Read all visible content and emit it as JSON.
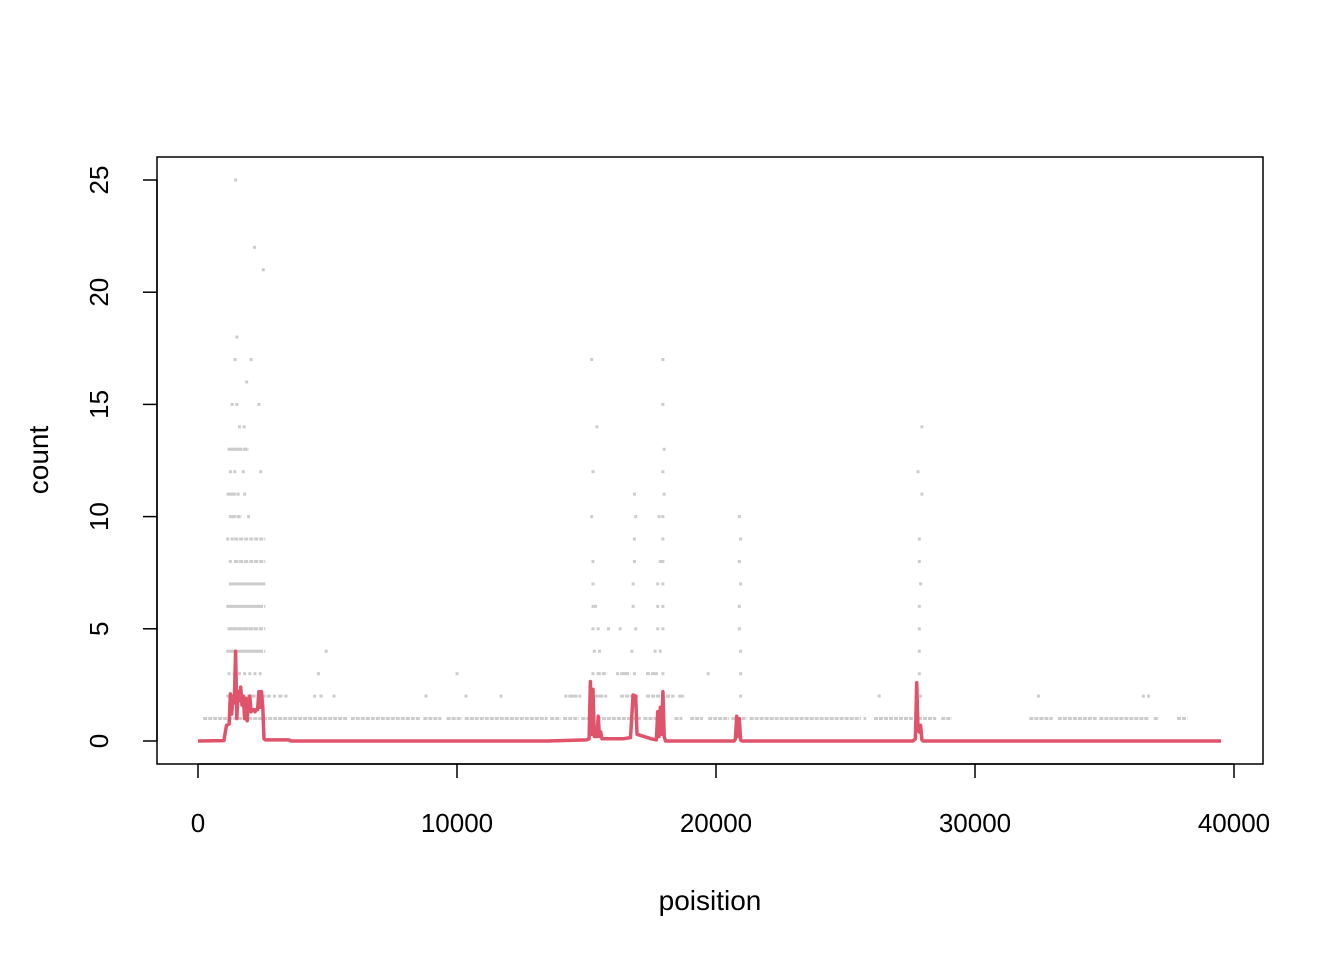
{
  "chart_data": {
    "type": "scatter",
    "title": "",
    "xlabel": "poisition",
    "ylabel": "count",
    "xlim": [
      -1500,
      41000
    ],
    "ylim": [
      -1,
      26
    ],
    "x_ticks": [
      0,
      10000,
      20000,
      30000,
      40000
    ],
    "y_ticks": [
      0,
      5,
      10,
      15,
      20,
      25
    ],
    "x_tick_labels": [
      "0",
      "10000",
      "20000",
      "30000",
      "40000"
    ],
    "y_tick_labels": [
      "0",
      "5",
      "10",
      "15",
      "20",
      "25"
    ],
    "grid": false,
    "legend": "none",
    "colors": {
      "points": "#cccccc",
      "line": "#df536b",
      "axis": "#000000"
    },
    "series": [
      {
        "type": "scatter",
        "points": [
          [
            1450,
            25
          ],
          [
            2180,
            22
          ],
          [
            2520,
            21
          ],
          [
            1500,
            18
          ],
          [
            1430,
            17
          ],
          [
            2050,
            17
          ],
          [
            1880,
            16
          ],
          [
            1320,
            15
          ],
          [
            1500,
            15
          ],
          [
            2350,
            15
          ],
          [
            1600,
            14
          ],
          [
            1780,
            14
          ],
          [
            1200,
            13
          ],
          [
            1350,
            13
          ],
          [
            1500,
            13
          ],
          [
            1650,
            13
          ],
          [
            1850,
            13
          ],
          [
            1250,
            12
          ],
          [
            1420,
            12
          ],
          [
            1750,
            12
          ],
          [
            2420,
            12
          ],
          [
            1250,
            11
          ],
          [
            1400,
            11
          ],
          [
            1550,
            11
          ],
          [
            1800,
            11
          ],
          [
            1250,
            10
          ],
          [
            1400,
            10
          ],
          [
            1550,
            10
          ],
          [
            1950,
            10
          ],
          [
            1150,
            9
          ],
          [
            1320,
            9
          ],
          [
            1480,
            9
          ],
          [
            1650,
            9
          ],
          [
            1850,
            9
          ],
          [
            2050,
            9
          ],
          [
            2250,
            9
          ],
          [
            2450,
            9
          ],
          [
            1250,
            8
          ],
          [
            1450,
            8
          ],
          [
            1650,
            8
          ],
          [
            1850,
            8
          ],
          [
            2050,
            8
          ],
          [
            2250,
            8
          ],
          [
            2450,
            8
          ],
          [
            1250,
            7
          ],
          [
            1450,
            7
          ],
          [
            1650,
            7
          ],
          [
            1850,
            7
          ],
          [
            2050,
            7
          ],
          [
            2250,
            7
          ],
          [
            2450,
            7
          ],
          [
            1150,
            6
          ],
          [
            1350,
            6
          ],
          [
            1550,
            6
          ],
          [
            1750,
            6
          ],
          [
            1950,
            6
          ],
          [
            2150,
            6
          ],
          [
            2350,
            6
          ],
          [
            1200,
            5
          ],
          [
            1400,
            5
          ],
          [
            1600,
            5
          ],
          [
            1800,
            5
          ],
          [
            2000,
            5
          ],
          [
            2200,
            5
          ],
          [
            2400,
            5
          ],
          [
            1150,
            4
          ],
          [
            1350,
            4
          ],
          [
            1550,
            4
          ],
          [
            1750,
            4
          ],
          [
            1950,
            4
          ],
          [
            2150,
            4
          ],
          [
            2350,
            4
          ],
          [
            4950,
            4
          ],
          [
            1200,
            3
          ],
          [
            1400,
            3
          ],
          [
            1600,
            3
          ],
          [
            1800,
            3
          ],
          [
            2000,
            3
          ],
          [
            2200,
            3
          ],
          [
            2400,
            3
          ],
          [
            4650,
            3
          ],
          [
            1150,
            2
          ],
          [
            1350,
            2
          ],
          [
            1550,
            2
          ],
          [
            1750,
            2
          ],
          [
            1950,
            2
          ],
          [
            2150,
            2
          ],
          [
            2350,
            2
          ],
          [
            2750,
            2
          ],
          [
            2950,
            2
          ],
          [
            3400,
            2
          ],
          [
            4500,
            2
          ],
          [
            4750,
            2
          ],
          [
            5250,
            2
          ],
          [
            8800,
            2
          ],
          [
            10350,
            2
          ],
          [
            11700,
            2
          ],
          [
            10000,
            3
          ],
          [
            15200,
            17
          ],
          [
            15400,
            14
          ],
          [
            15250,
            12
          ],
          [
            15200,
            10
          ],
          [
            15250,
            8
          ],
          [
            15250,
            7
          ],
          [
            15250,
            6
          ],
          [
            15350,
            6
          ],
          [
            15250,
            5
          ],
          [
            15450,
            5
          ],
          [
            15300,
            4
          ],
          [
            15500,
            4
          ],
          [
            15250,
            3
          ],
          [
            15450,
            3
          ],
          [
            14200,
            2
          ],
          [
            14450,
            2
          ],
          [
            15200,
            2
          ],
          [
            15450,
            2
          ],
          [
            15850,
            5
          ],
          [
            16850,
            11
          ],
          [
            16900,
            10
          ],
          [
            16850,
            9
          ],
          [
            16850,
            8
          ],
          [
            16800,
            7
          ],
          [
            16800,
            6
          ],
          [
            16900,
            5
          ],
          [
            16750,
            4
          ],
          [
            16850,
            3
          ],
          [
            16200,
            3
          ],
          [
            16500,
            3
          ],
          [
            16300,
            5
          ],
          [
            17950,
            17
          ],
          [
            17950,
            15
          ],
          [
            18000,
            13
          ],
          [
            17950,
            12
          ],
          [
            18000,
            11
          ],
          [
            17800,
            10
          ],
          [
            17950,
            10
          ],
          [
            17950,
            9
          ],
          [
            17850,
            8
          ],
          [
            17950,
            8
          ],
          [
            17750,
            7
          ],
          [
            17950,
            7
          ],
          [
            17750,
            6
          ],
          [
            17950,
            6
          ],
          [
            17750,
            5
          ],
          [
            17950,
            5
          ],
          [
            17650,
            4
          ],
          [
            17850,
            4
          ],
          [
            17700,
            3
          ],
          [
            17950,
            3
          ],
          [
            17950,
            2
          ],
          [
            18150,
            2
          ],
          [
            18600,
            2
          ],
          [
            19700,
            3
          ],
          [
            20900,
            10
          ],
          [
            20950,
            9
          ],
          [
            20900,
            8
          ],
          [
            20950,
            7
          ],
          [
            20900,
            6
          ],
          [
            20900,
            5
          ],
          [
            20950,
            4
          ],
          [
            20950,
            3
          ],
          [
            20950,
            2
          ],
          [
            27950,
            14
          ],
          [
            27800,
            12
          ],
          [
            27950,
            11
          ],
          [
            27850,
            9
          ],
          [
            27850,
            8
          ],
          [
            27900,
            7
          ],
          [
            27850,
            6
          ],
          [
            27850,
            5
          ],
          [
            27850,
            4
          ],
          [
            27850,
            3
          ],
          [
            27900,
            2
          ],
          [
            26300,
            2
          ],
          [
            32450,
            2
          ],
          [
            36500,
            2
          ],
          [
            36700,
            2
          ]
        ],
        "segments": [
          [
            200,
            5800,
            1
          ],
          [
            5900,
            8600,
            1
          ],
          [
            8700,
            9400,
            1
          ],
          [
            9600,
            10200,
            1
          ],
          [
            10300,
            13500,
            1
          ],
          [
            13600,
            14000,
            1
          ],
          [
            14100,
            14700,
            1
          ],
          [
            14800,
            15300,
            1
          ],
          [
            15400,
            17100,
            1
          ],
          [
            17200,
            18000,
            1
          ],
          [
            18400,
            18700,
            1
          ],
          [
            19000,
            19500,
            1
          ],
          [
            19700,
            20500,
            1
          ],
          [
            20600,
            21200,
            1
          ],
          [
            21300,
            25600,
            1
          ],
          [
            25700,
            25800,
            1
          ],
          [
            26100,
            27600,
            1
          ],
          [
            27800,
            28500,
            1
          ],
          [
            28700,
            29100,
            1
          ],
          [
            32100,
            33000,
            1
          ],
          [
            33200,
            34700,
            1
          ],
          [
            34800,
            36700,
            1
          ],
          [
            36900,
            37100,
            1
          ],
          [
            37800,
            38200,
            1
          ],
          [
            1300,
            2800,
            2
          ],
          [
            3100,
            3300,
            2
          ],
          [
            14300,
            14800,
            2
          ],
          [
            15300,
            15800,
            2
          ],
          [
            16300,
            17000,
            2
          ],
          [
            17300,
            18400,
            2
          ],
          [
            18600,
            18800,
            2
          ],
          [
            15400,
            15800,
            3
          ],
          [
            16300,
            16700,
            3
          ],
          [
            17300,
            17700,
            3
          ],
          [
            1200,
            2600,
            4
          ],
          [
            1200,
            2600,
            5
          ],
          [
            1200,
            2600,
            6
          ],
          [
            1300,
            2600,
            7
          ],
          [
            1400,
            2600,
            8
          ],
          [
            1400,
            2600,
            9
          ],
          [
            1300,
            1700,
            10
          ],
          [
            1100,
            1600,
            11
          ],
          [
            1150,
            1950,
            13
          ]
        ]
      },
      {
        "type": "line",
        "points": [
          [
            0,
            0
          ],
          [
            1000,
            0.02
          ],
          [
            1100,
            0.7
          ],
          [
            1200,
            0.75
          ],
          [
            1250,
            2.1
          ],
          [
            1300,
            1.2
          ],
          [
            1350,
            2.0
          ],
          [
            1400,
            1.7
          ],
          [
            1450,
            4.0
          ],
          [
            1500,
            1.0
          ],
          [
            1550,
            2.2
          ],
          [
            1600,
            1.8
          ],
          [
            1650,
            2.4
          ],
          [
            1700,
            1.6
          ],
          [
            1750,
            2.0
          ],
          [
            1800,
            1.0
          ],
          [
            1850,
            1.9
          ],
          [
            1900,
            0.9
          ],
          [
            1950,
            1.8
          ],
          [
            2000,
            2.0
          ],
          [
            2050,
            1.3
          ],
          [
            2100,
            1.4
          ],
          [
            2150,
            1.4
          ],
          [
            2200,
            1.3
          ],
          [
            2250,
            1.4
          ],
          [
            2300,
            1.4
          ],
          [
            2350,
            2.2
          ],
          [
            2400,
            1.5
          ],
          [
            2450,
            2.2
          ],
          [
            2500,
            1.5
          ],
          [
            2550,
            0.1
          ],
          [
            2600,
            0.05
          ],
          [
            3500,
            0.05
          ],
          [
            3600,
            0.0
          ],
          [
            13500,
            0.0
          ],
          [
            15000,
            0.05
          ],
          [
            15100,
            0.1
          ],
          [
            15150,
            2.65
          ],
          [
            15200,
            0.3
          ],
          [
            15250,
            2.3
          ],
          [
            15300,
            0.2
          ],
          [
            15400,
            0.2
          ],
          [
            15450,
            1.1
          ],
          [
            15500,
            0.2
          ],
          [
            15550,
            0.4
          ],
          [
            15600,
            0.1
          ],
          [
            16400,
            0.1
          ],
          [
            16700,
            0.15
          ],
          [
            16800,
            2.05
          ],
          [
            16900,
            2.0
          ],
          [
            16950,
            0.3
          ],
          [
            17500,
            0.1
          ],
          [
            17700,
            0.05
          ],
          [
            17750,
            1.3
          ],
          [
            17800,
            0.2
          ],
          [
            17850,
            1.5
          ],
          [
            17900,
            0.3
          ],
          [
            17950,
            2.2
          ],
          [
            18000,
            0.2
          ],
          [
            18050,
            0.0
          ],
          [
            20700,
            0.0
          ],
          [
            20750,
            0.1
          ],
          [
            20800,
            1.1
          ],
          [
            20850,
            0.2
          ],
          [
            20900,
            1.0
          ],
          [
            20950,
            0.05
          ],
          [
            21000,
            0.0
          ],
          [
            27600,
            0.0
          ],
          [
            27700,
            0.1
          ],
          [
            27750,
            2.6
          ],
          [
            27800,
            0.5
          ],
          [
            27850,
            0.4
          ],
          [
            27900,
            0.7
          ],
          [
            27950,
            0.05
          ],
          [
            28000,
            0.0
          ],
          [
            39500,
            0.0
          ]
        ]
      }
    ]
  }
}
